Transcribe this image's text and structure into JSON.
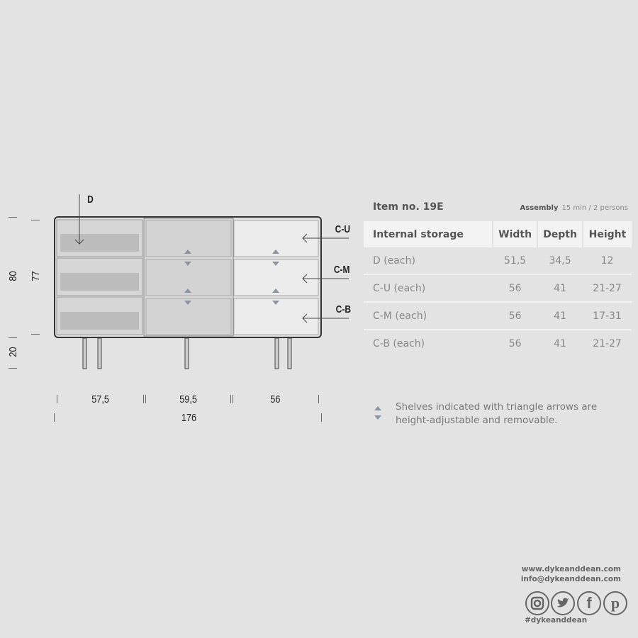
{
  "drawing": {
    "labels": {
      "drawer": "D",
      "upper": "C-U",
      "middle": "C-M",
      "bottom": "C-B"
    },
    "dimensions": {
      "total_height": "80",
      "body_height": "77",
      "leg_height": "20",
      "widths": [
        "57,5",
        "59,5",
        "56"
      ],
      "total_width": "176"
    },
    "colors": {
      "drawer_fill": "#d4d4d4",
      "compartment_right": "#ececec",
      "arrow": "#8a94a0",
      "outline": "#333333"
    }
  },
  "header": {
    "title": "Item no. 19E",
    "assembly_label": "Assembly",
    "assembly_value": "15 min / 2 persons"
  },
  "table": {
    "columns": [
      "Internal storage",
      "Width",
      "Depth",
      "Height"
    ],
    "rows": [
      [
        "D (each)",
        "51,5",
        "34,5",
        "12"
      ],
      [
        "C-U (each)",
        "56",
        "41",
        "21-27"
      ],
      [
        "C-M (each)",
        "56",
        "41",
        "17-31"
      ],
      [
        "C-B (each)",
        "56",
        "41",
        "21-27"
      ]
    ]
  },
  "note": {
    "line1": "Shelves indicated with triangle arrows are",
    "line2": "height-adjustable and removable."
  },
  "contact": {
    "website": "www.dykeanddean.com",
    "email": "info@dykeanddean.com",
    "hashtag": "#dykeanddean",
    "social_icons": [
      "instagram-icon",
      "twitter-icon",
      "facebook-icon",
      "pinterest-icon"
    ]
  }
}
